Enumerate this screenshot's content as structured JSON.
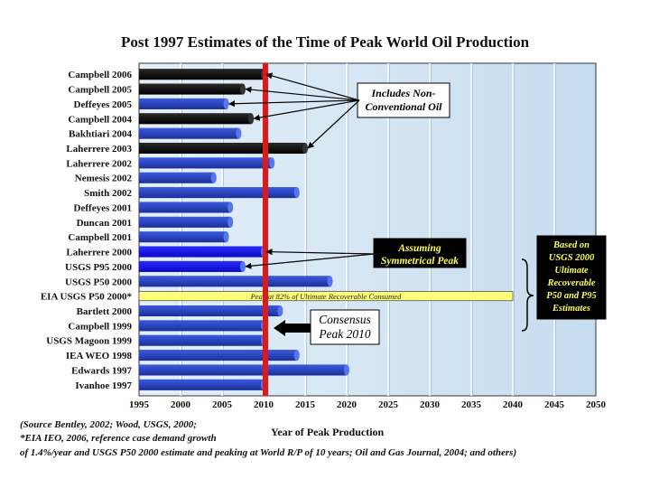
{
  "chart_data": {
    "type": "bar",
    "orientation": "horizontal",
    "title": "Post 1997 Estimates of the Time of Peak World Oil Production",
    "xlabel": "Year of Peak Production",
    "ylabel": "",
    "xlim": [
      1995,
      2050
    ],
    "x_ticks": [
      "1995",
      "2000",
      "2005",
      "2010",
      "2015",
      "2020",
      "2025",
      "2030",
      "2035",
      "2040",
      "2045",
      "2050"
    ],
    "grid": true,
    "categories": [
      "Campbell 2006",
      "Campbell 2005",
      "Deffeyes 2005",
      "Campbell 2004",
      "Bakhtiari 2004",
      "Laherrere 2003",
      "Laherrere 2002",
      "Nemesis 2002",
      "Smith 2002",
      "Deffeyes 2001",
      "Duncan 2001",
      "Campbell 2001",
      "Laherrere 2000",
      "USGS P95 2000",
      "USGS P50 2000",
      "EIA USGS P50 2000*",
      "Bartlett 2000",
      "Campbell 1999",
      "USGS Magoon 1999",
      "IEA WEO 1998",
      "Edwards 1997",
      "Ivanhoe 1997"
    ],
    "values": [
      2010,
      2007.5,
      2005.5,
      2008.5,
      2007,
      2015,
      2011,
      2004,
      2014,
      2006,
      2006,
      2005.5,
      2010,
      2007.5,
      2018,
      2040,
      2012,
      2010,
      2010,
      2014,
      2020,
      2010
    ],
    "bar_group": [
      "black",
      "black",
      "blue",
      "black",
      "blue",
      "black",
      "blue",
      "blue",
      "blue",
      "blue",
      "blue",
      "blue",
      "brightblue",
      "brightblue",
      "blue",
      "yellow",
      "blue",
      "blue",
      "blue",
      "blue",
      "blue",
      "blue"
    ],
    "colors": {
      "black": "#0a0a0a",
      "blue": "#2846c6",
      "brightblue": "#1414ee",
      "yellow": "#ffff7a",
      "consensus_line": "#e01818",
      "plot_background": "#cfe2f3"
    },
    "consensus_year": 2010,
    "bar_label": "Peak at 82% of Ultimate Recoverable Consumed",
    "annotations": {
      "non_conventional": [
        "Includes Non-",
        "Conventional Oil"
      ],
      "symmetrical": [
        "Assuming",
        "Symmetrical Peak"
      ],
      "consensus": [
        "Consensus",
        "Peak 2010"
      ],
      "usgs": [
        "Based on",
        "USGS 2000",
        "Ultimate",
        "Recoverable",
        "P50 and P95",
        "Estimates"
      ]
    }
  },
  "footer": {
    "line1": "(Source Bentley, 2002; Wood, USGS, 2000;",
    "line2": "*EIA IEO, 2006, reference case demand growth",
    "line3": "of 1.4%/year and USGS P50 2000 estimate and peaking at World R/P of 10 years; Oil and Gas Journal, 2004; and others)"
  }
}
